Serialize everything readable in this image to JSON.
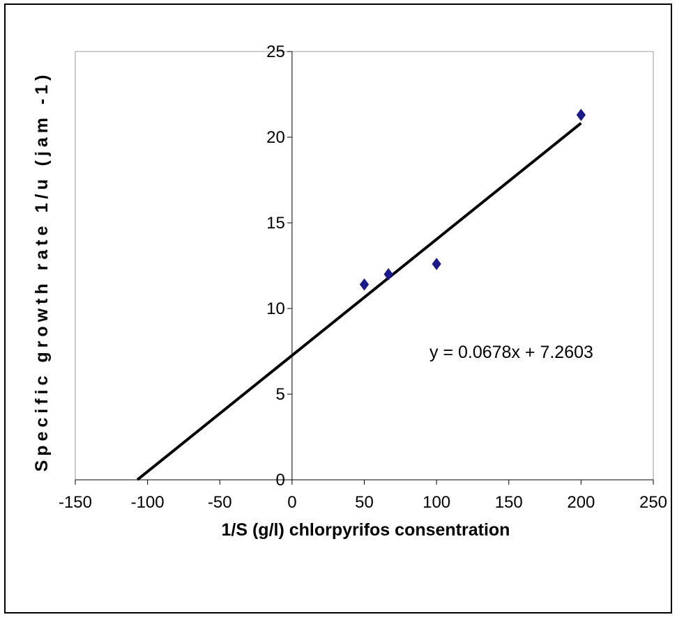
{
  "chart_data": {
    "type": "scatter",
    "xlabel": "1/S (g/l) chlorpyrifos consentration",
    "ylabel": "Specific growth rate 1/u (jam -1)",
    "xlim": [
      -150,
      250
    ],
    "ylim": [
      0,
      25
    ],
    "x_ticks": [
      "-150",
      "-100",
      "-50",
      "0",
      "50",
      "100",
      "150",
      "200",
      "250"
    ],
    "y_ticks": [
      "0",
      "5",
      "10",
      "15",
      "20",
      "25"
    ],
    "series": [
      {
        "points": [
          {
            "x": 50,
            "y": 11.4
          },
          {
            "x": 66.7,
            "y": 12.0
          },
          {
            "x": 100,
            "y": 12.6
          },
          {
            "x": 200,
            "y": 21.3
          }
        ],
        "marker": "diamond",
        "color": "#1a1a8c"
      }
    ],
    "trendline": {
      "slope": 0.0678,
      "intercept": 7.2603,
      "x_range": [
        -107,
        200
      ],
      "color": "#000000",
      "equation_label": "y = 0.0678x + 7.2603"
    },
    "grid": false,
    "legend": "none"
  }
}
